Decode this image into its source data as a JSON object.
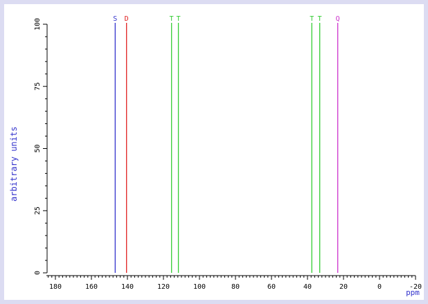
{
  "chart_data": {
    "type": "stick",
    "xlabel": "ppm",
    "ylabel": "arbitrary units",
    "xlim": [
      185,
      -20
    ],
    "ylim": [
      0,
      100
    ],
    "x_ticks": [
      180,
      160,
      140,
      120,
      100,
      80,
      60,
      40,
      20,
      0,
      -20
    ],
    "x_tick_labels": [
      "180",
      "160",
      "140",
      "120",
      "100",
      "80",
      "60",
      "40",
      "20",
      "0",
      "-20"
    ],
    "y_ticks": [
      0,
      25,
      50,
      75,
      100
    ],
    "y_tick_labels": [
      "0",
      "25",
      "50",
      "75",
      "100"
    ],
    "peaks": [
      {
        "ppm": 146.8,
        "intensity": 100,
        "multiplicity": "S",
        "color": "#3333cc"
      },
      {
        "ppm": 140.5,
        "intensity": 100,
        "multiplicity": "D",
        "color": "#e02020"
      },
      {
        "ppm": 115.5,
        "intensity": 100,
        "multiplicity": "T",
        "color": "#33cc33"
      },
      {
        "ppm": 111.7,
        "intensity": 100,
        "multiplicity": "T",
        "color": "#33cc33"
      },
      {
        "ppm": 37.6,
        "intensity": 100,
        "multiplicity": "T",
        "color": "#33cc33"
      },
      {
        "ppm": 33.2,
        "intensity": 100,
        "multiplicity": "T",
        "color": "#33cc33"
      },
      {
        "ppm": 23.2,
        "intensity": 100,
        "multiplicity": "Q",
        "color": "#cc33cc"
      }
    ],
    "colors": {
      "background": "#dcdcf2",
      "axis": "#000000",
      "ylabel": "#3333cc",
      "xlabel": "#3333cc"
    }
  }
}
